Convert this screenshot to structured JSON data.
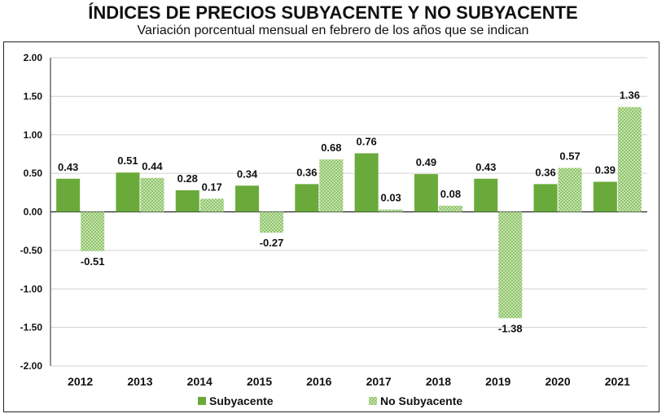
{
  "chart_data": {
    "type": "bar",
    "title": "ÍNDICES DE PRECIOS SUBYACENTE Y NO SUBYACENTE",
    "subtitle": "Variación porcentual mensual en febrero de los años que se indican",
    "categories": [
      "2012",
      "2013",
      "2014",
      "2015",
      "2016",
      "2017",
      "2018",
      "2019",
      "2020",
      "2021"
    ],
    "series": [
      {
        "name": "Subyacente",
        "values": [
          0.43,
          0.51,
          0.28,
          0.34,
          0.36,
          0.76,
          0.49,
          0.43,
          0.36,
          0.39
        ],
        "color": "#6aaa3a"
      },
      {
        "name": "No Subyacente",
        "values": [
          -0.51,
          0.44,
          0.17,
          -0.27,
          0.68,
          0.03,
          0.08,
          -1.38,
          0.57,
          1.36
        ],
        "color": "#a9d38c",
        "pattern": "checkered"
      }
    ],
    "ylim": [
      -2.0,
      2.0
    ],
    "yticks": [
      "2.00",
      "1.50",
      "1.00",
      "0.50",
      "0.00",
      "-0.50",
      "-1.00",
      "-1.50",
      "-2.00"
    ],
    "ytick_values": [
      2.0,
      1.5,
      1.0,
      0.5,
      0.0,
      -0.5,
      -1.0,
      -1.5,
      -2.0
    ],
    "grid": true,
    "legend_position": "bottom-left",
    "xlabel": "",
    "ylabel": ""
  }
}
